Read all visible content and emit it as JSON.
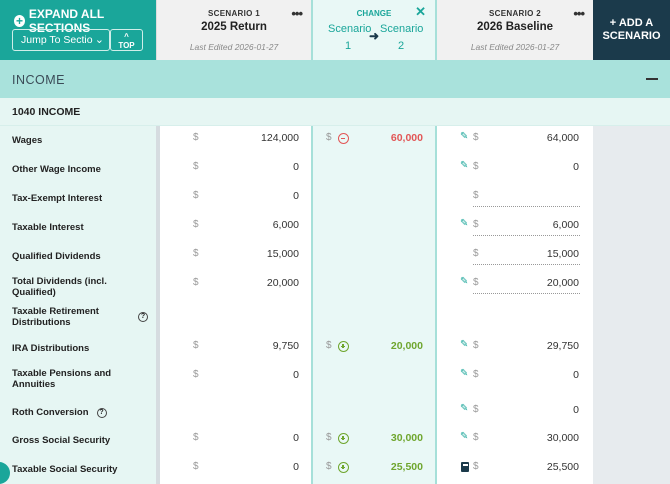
{
  "header": {
    "expand_all": "EXPAND ALL SECTIONS",
    "jump_to": "Jump To Section",
    "top": "TOP",
    "scenario1": {
      "label": "SCENARIO 1",
      "name": "2025 Return",
      "edited": "Last Edited 2026-01-27"
    },
    "change": {
      "label": "CHANGE",
      "from": "Scenario 1",
      "to": "Scenario 2"
    },
    "scenario2": {
      "label": "SCENARIO 2",
      "name": "2026 Baseline",
      "edited": "Last Edited 2026-01-27"
    },
    "add_scenario": "+ ADD A SCENARIO"
  },
  "section": {
    "title": "INCOME",
    "subsection": "1040 INCOME"
  },
  "currency_symbol": "$",
  "rows": [
    {
      "label": "Wages",
      "s1": "124,000",
      "change": "60,000",
      "change_dir": "neg",
      "s2": "64,000",
      "s2_icon": "edit",
      "s2_input": false
    },
    {
      "label": "Other Wage Income",
      "s1": "0",
      "change": "",
      "change_dir": "",
      "s2": "0",
      "s2_icon": "edit",
      "s2_input": false
    },
    {
      "label": "Tax-Exempt Interest",
      "s1": "0",
      "change": "",
      "change_dir": "",
      "s2": "",
      "s2_icon": "",
      "s2_input": true
    },
    {
      "label": "Taxable Interest",
      "s1": "6,000",
      "change": "",
      "change_dir": "",
      "s2": "6,000",
      "s2_icon": "edit",
      "s2_input": true
    },
    {
      "label": "Qualified Dividends",
      "s1": "15,000",
      "change": "",
      "change_dir": "",
      "s2": "15,000",
      "s2_icon": "",
      "s2_input": true
    },
    {
      "label": "Total Dividends (incl. Qualified)",
      "s1": "20,000",
      "change": "",
      "change_dir": "",
      "s2": "20,000",
      "s2_icon": "edit",
      "s2_input": true
    },
    {
      "label": "Taxable Retirement Distributions",
      "s1": "",
      "change": "",
      "change_dir": "",
      "s2": "",
      "s2_icon": "",
      "s2_input": false,
      "help": true,
      "header_only": true
    },
    {
      "label": "IRA Distributions",
      "s1": "9,750",
      "change": "20,000",
      "change_dir": "pos",
      "s2": "29,750",
      "s2_icon": "edit",
      "s2_input": false
    },
    {
      "label": "Taxable Pensions and Annuities",
      "s1": "0",
      "change": "",
      "change_dir": "",
      "s2": "0",
      "s2_icon": "edit",
      "s2_input": false
    },
    {
      "label": "Roth Conversion",
      "s1": "",
      "change": "",
      "change_dir": "",
      "s2": "0",
      "s2_icon": "edit",
      "s2_input": false,
      "help": true
    },
    {
      "label": "Gross Social Security",
      "s1": "0",
      "change": "30,000",
      "change_dir": "pos",
      "s2": "30,000",
      "s2_icon": "edit",
      "s2_input": false
    },
    {
      "label": "Taxable Social Security",
      "s1": "0",
      "change": "25,500",
      "change_dir": "pos",
      "s2": "25,500",
      "s2_icon": "calc",
      "s2_input": false
    }
  ]
}
